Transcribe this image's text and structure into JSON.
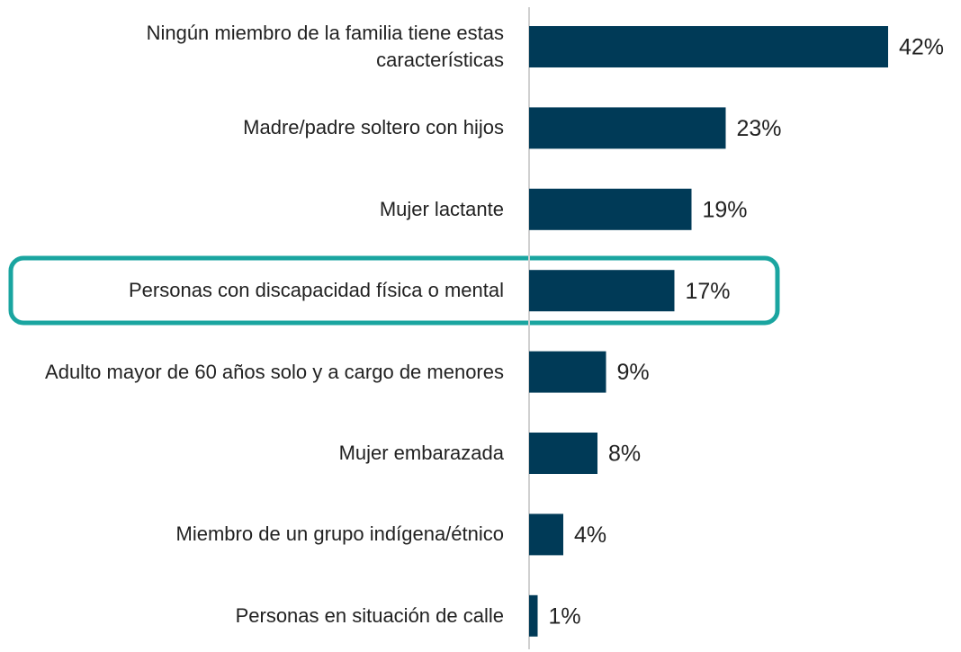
{
  "chart_data": {
    "type": "bar",
    "orientation": "horizontal",
    "categories": [
      "Ningún miembro de la familia tiene estas características",
      "Madre/padre soltero con hijos",
      "Mujer lactante",
      "Personas con discapacidad física o mental",
      "Adulto mayor de 60 años solo y a cargo de menores",
      "Mujer embarazada",
      "Miembro de un grupo indígena/étnico",
      "Personas en situación de calle"
    ],
    "values": [
      42,
      23,
      19,
      17,
      9,
      8,
      4,
      1
    ],
    "value_labels": [
      "42%",
      "23%",
      "19%",
      "17%",
      "9%",
      "8%",
      "4%",
      "1%"
    ],
    "color": "#003a57"
  }
}
